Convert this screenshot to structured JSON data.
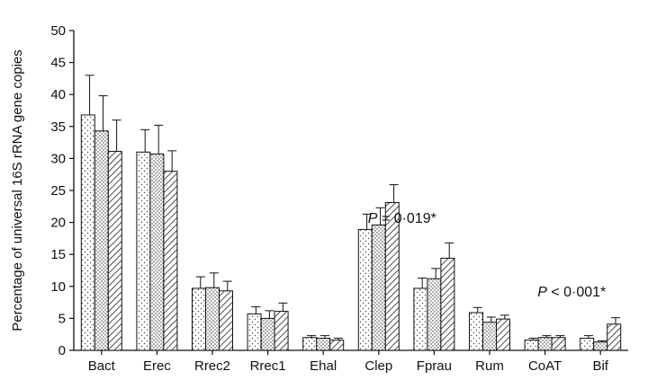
{
  "chart_data": {
    "type": "bar",
    "ylabel": "Percentage of universal 16S rRNA gene copies",
    "xlabel": "",
    "ylim": [
      0,
      50
    ],
    "yticks": [
      "0",
      "5",
      "10",
      "15",
      "20",
      "25",
      "30",
      "35",
      "40",
      "45",
      "50"
    ],
    "categories": [
      "Bact",
      "Erec",
      "Rrec2",
      "Rrec1",
      "Ehal",
      "Clep",
      "Fprau",
      "Rum",
      "CoAT",
      "Bif"
    ],
    "series": [
      {
        "pattern": "dots",
        "values": [
          36.8,
          31.0,
          9.7,
          5.7,
          2.0,
          18.9,
          9.7,
          5.9,
          1.6,
          1.9
        ],
        "errors": [
          6.2,
          3.5,
          1.8,
          1.1,
          0.3,
          2.4,
          1.6,
          0.8,
          0.3,
          0.4
        ]
      },
      {
        "pattern": "dense-dots",
        "values": [
          34.3,
          30.7,
          9.8,
          5.0,
          1.9,
          19.6,
          11.2,
          4.4,
          2.0,
          1.3
        ],
        "errors": [
          5.5,
          4.5,
          2.3,
          1.2,
          0.4,
          2.7,
          1.6,
          0.8,
          0.3,
          0.2
        ]
      },
      {
        "pattern": "hatch",
        "values": [
          31.1,
          28.0,
          9.3,
          6.1,
          1.6,
          23.1,
          14.4,
          4.9,
          2.0,
          4.1
        ],
        "errors": [
          4.9,
          3.2,
          1.5,
          1.3,
          0.3,
          2.8,
          2.4,
          0.6,
          0.3,
          1.0
        ]
      }
    ],
    "annotations": [
      {
        "category": "Clep",
        "italic_label": "P",
        "rest": " = 0·019*"
      },
      {
        "category": "Bif",
        "italic_label": "P",
        "rest": " < 0·001*"
      }
    ],
    "grid": false,
    "legend": "none"
  }
}
